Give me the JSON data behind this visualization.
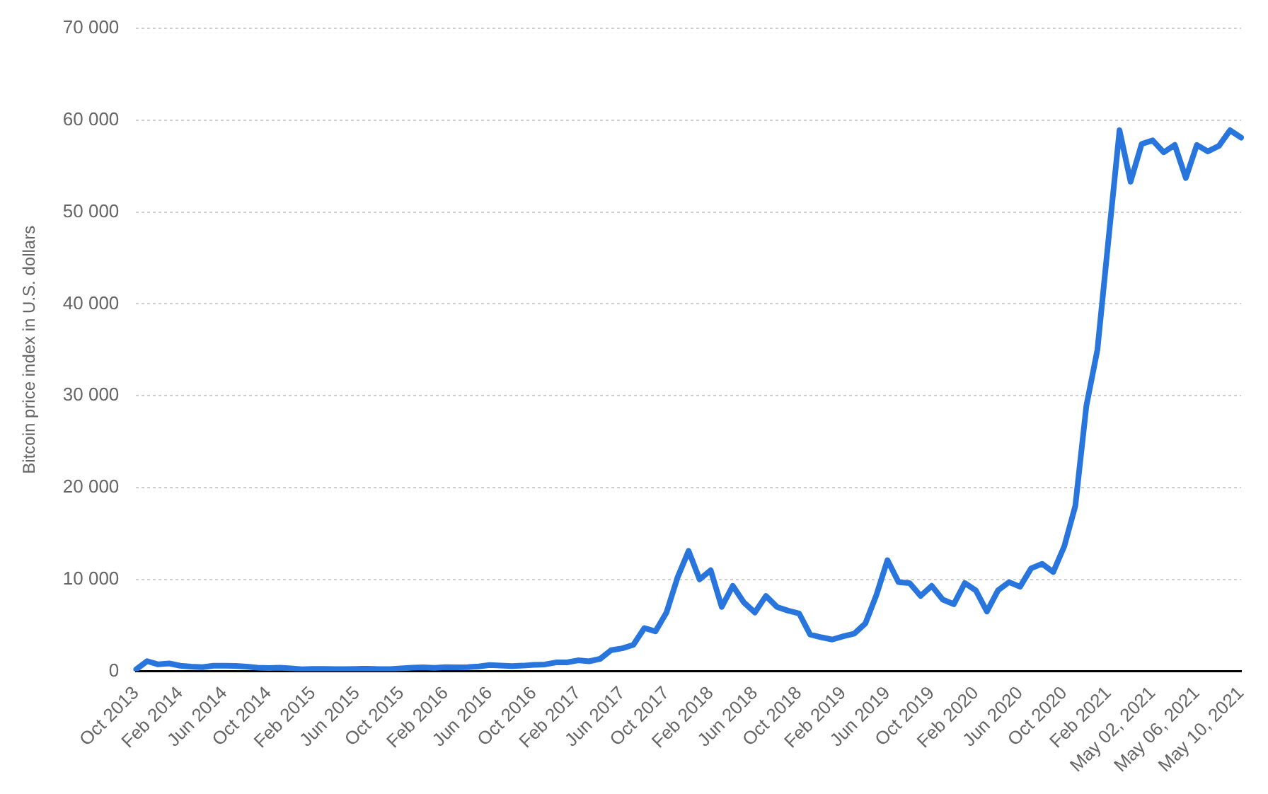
{
  "chart_data": {
    "type": "line",
    "ylabel": "Bitcoin price index in U.S. dollars",
    "categories": [
      "Oct 2013",
      null,
      null,
      null,
      "Feb 2014",
      null,
      null,
      null,
      "Jun 2014",
      null,
      null,
      null,
      "Oct 2014",
      null,
      null,
      null,
      "Feb 2015",
      null,
      null,
      null,
      "Jun 2015",
      null,
      null,
      null,
      "Oct 2015",
      null,
      null,
      null,
      "Feb 2016",
      null,
      null,
      null,
      "Jun 2016",
      null,
      null,
      null,
      "Oct 2016",
      null,
      null,
      null,
      "Feb 2017",
      null,
      null,
      null,
      "Jun 2017",
      null,
      null,
      null,
      "Oct 2017",
      null,
      null,
      null,
      "Feb 2018",
      null,
      null,
      null,
      "Jun 2018",
      null,
      null,
      null,
      "Oct 2018",
      null,
      null,
      null,
      "Feb 2019",
      null,
      null,
      null,
      "Jun 2019",
      null,
      null,
      null,
      "Oct 2019",
      null,
      null,
      null,
      "Feb 2020",
      null,
      null,
      null,
      "Jun 2020",
      null,
      null,
      null,
      "Oct 2020",
      null,
      null,
      null,
      "Feb 2021",
      null,
      null,
      null,
      "May 02, 2021",
      null,
      null,
      null,
      "May 06, 2021",
      null,
      null,
      null,
      "May 10, 2021"
    ],
    "series": [
      {
        "color": "#2876dd",
        "values": [
          200,
          1100,
          750,
          850,
          600,
          500,
          450,
          600,
          600,
          580,
          500,
          380,
          340,
          380,
          320,
          220,
          250,
          250,
          230,
          230,
          260,
          280,
          230,
          240,
          310,
          380,
          430,
          370,
          440,
          420,
          450,
          530,
          670,
          620,
          570,
          610,
          700,
          740,
          960,
          970,
          1190,
          1080,
          1350,
          2300,
          2500,
          2870,
          4700,
          4340,
          6400,
          10200,
          13100,
          10000,
          11000,
          7000,
          9300,
          7500,
          6400,
          8200,
          7000,
          6600,
          6300,
          4000,
          3700,
          3450,
          3800,
          4100,
          5200,
          8300,
          12100,
          9700,
          9600,
          8200,
          9300,
          7800,
          7300,
          9600,
          8800,
          6500,
          8800,
          9700,
          9200,
          11200,
          11700,
          10800,
          13600,
          18000,
          28900,
          35000,
          47000,
          58900,
          53300,
          57400,
          57800,
          56500,
          57300,
          53700,
          57300,
          56600,
          57200,
          58900,
          58100
        ]
      }
    ],
    "ylim": [
      0,
      70000
    ],
    "yticks": [
      0,
      {
        "value": 10000,
        "label": "10 000"
      },
      {
        "value": 20000,
        "label": "20 000"
      },
      {
        "value": 30000,
        "label": "30 000"
      },
      {
        "value": 40000,
        "label": "40 000"
      },
      {
        "value": 50000,
        "label": "50 000"
      },
      {
        "value": 60000,
        "label": "60 000"
      },
      {
        "value": 70000,
        "label": "70 000"
      }
    ],
    "grid": "y",
    "legend": false,
    "marker": "none",
    "line_style": "solid"
  }
}
